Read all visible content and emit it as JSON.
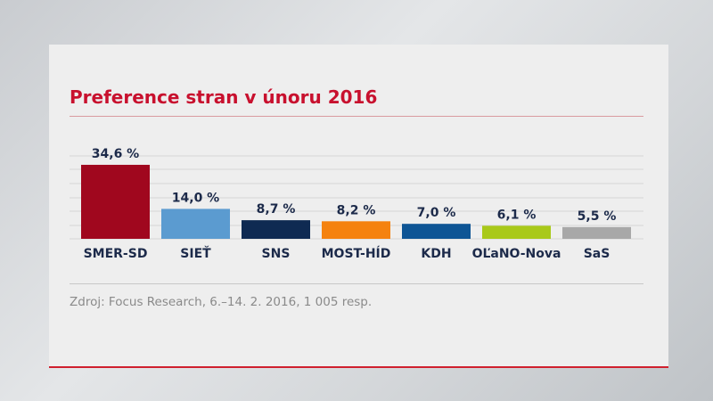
{
  "chart_data": {
    "type": "bar",
    "title": "Preference stran v únoru 2016",
    "categories": [
      "SMER-SD",
      "SIEŤ",
      "SNS",
      "MOST-HÍD",
      "KDH",
      "OĽaNO-Nova",
      "SaS"
    ],
    "values": [
      34.6,
      14.0,
      8.7,
      8.2,
      7.0,
      6.1,
      5.5
    ],
    "data_labels": [
      "34,6 %",
      "14,0 %",
      "8,7 %",
      "8,2 %",
      "7,0 %",
      "6,1 %",
      "5,5 %"
    ],
    "colors": [
      "#a0071e",
      "#5b9bd0",
      "#0f2a52",
      "#f5820f",
      "#0e5595",
      "#a9c91a",
      "#a8a8a8"
    ],
    "ylim": [
      0,
      40
    ],
    "grid": true,
    "legend": "none"
  },
  "source": "Zdroj: Focus Research, 6.–14. 2. 2016, 1 005 resp.",
  "accent_color": "#c8102e"
}
